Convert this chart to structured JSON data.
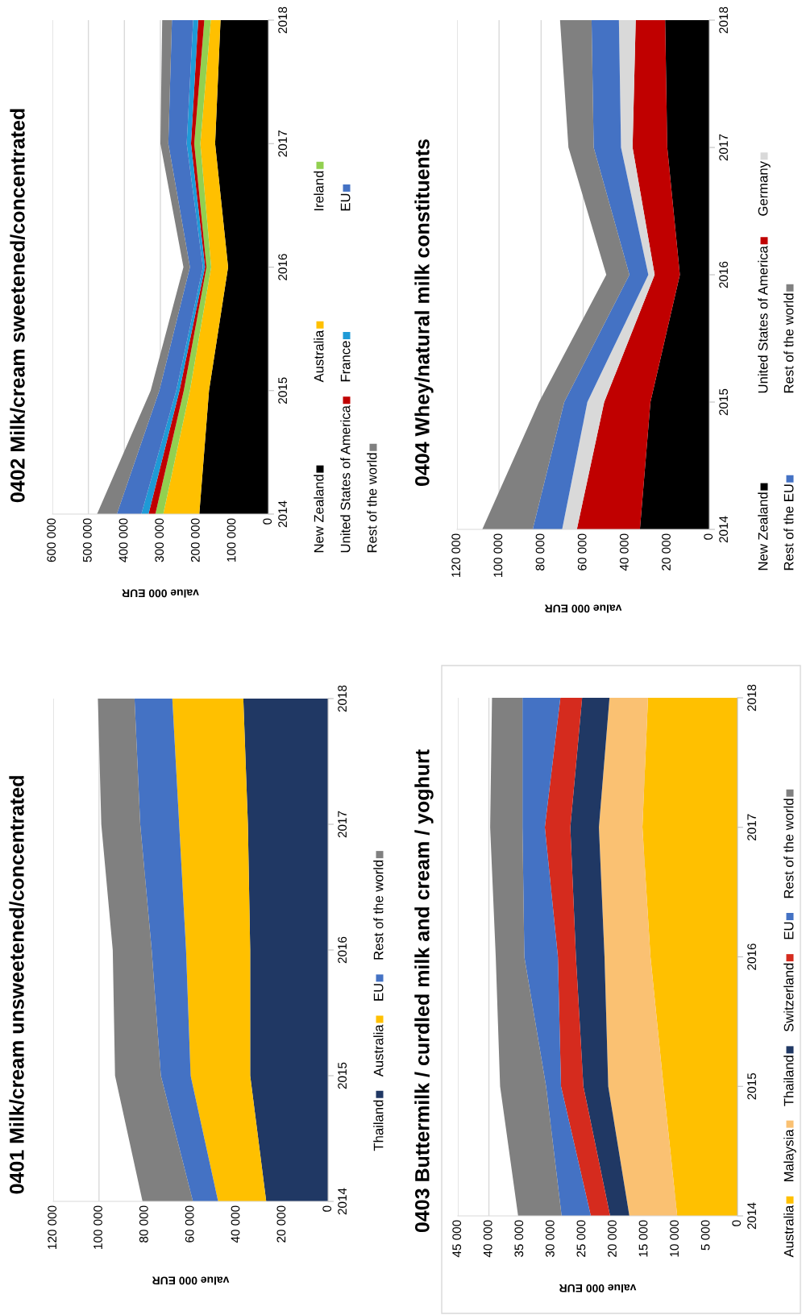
{
  "chart_data": [
    {
      "type": "area",
      "title": "0401 Milk/cream unsweetened/concentrated",
      "xlabel": "value 000 EUR",
      "orientation": "horizontal",
      "stacked": true,
      "categories": [
        "2018",
        "2017",
        "2016",
        "2015",
        "2014"
      ],
      "series": [
        {
          "name": "Thailand",
          "color": "#203864",
          "values": [
            37000,
            35000,
            34000,
            34000,
            27000
          ]
        },
        {
          "name": "Australia",
          "color": "#ffc000",
          "values": [
            31000,
            30000,
            28000,
            26000,
            21000
          ]
        },
        {
          "name": "EU",
          "color": "#4472c4",
          "values": [
            16500,
            17000,
            15000,
            13000,
            11000
          ]
        },
        {
          "name": "Rest of the world",
          "color": "#808080",
          "values": [
            16000,
            17000,
            17000,
            20000,
            22000
          ]
        }
      ],
      "xlim": [
        120000,
        0
      ],
      "xticks": [
        0,
        {
          "value": 20000,
          "label": "20 000"
        },
        {
          "value": 40000,
          "label": "40 000"
        },
        {
          "value": 60000,
          "label": "60 000"
        },
        {
          "value": 80000,
          "label": "80 000"
        },
        {
          "value": 100000,
          "label": "100 000"
        },
        {
          "value": 120000,
          "label": "120 000"
        }
      ],
      "grid": "x",
      "legend": "right"
    },
    {
      "type": "area",
      "title": "0402 Milk/cream sweetened/concentrated",
      "xlabel": "value 000 EUR",
      "orientation": "horizontal",
      "stacked": true,
      "categories": [
        "2018",
        "2017",
        "2016",
        "2015",
        "2014"
      ],
      "series": [
        {
          "name": "New Zealand",
          "color": "#000000",
          "values": [
            133000,
            148000,
            112000,
            165000,
            192000
          ]
        },
        {
          "name": "Australia",
          "color": "#ffc000",
          "values": [
            27000,
            41000,
            47000,
            53000,
            100000
          ]
        },
        {
          "name": "Ireland",
          "color": "#92d050",
          "values": [
            18000,
            17000,
            13000,
            17000,
            22000
          ]
        },
        {
          "name": "United States of America",
          "color": "#c00000",
          "values": [
            17000,
            9000,
            4000,
            12000,
            19000
          ]
        },
        {
          "name": "France",
          "color": "#1f9ad6",
          "values": [
            14000,
            12000,
            6000,
            9000,
            20000
          ]
        },
        {
          "name": "EU",
          "color": "#4472c4",
          "values": [
            59000,
            51000,
            36000,
            47000,
            68000
          ]
        },
        {
          "name": "Rest of the world",
          "color": "#808080",
          "values": [
            27000,
            22000,
            18000,
            24000,
            55000
          ]
        }
      ],
      "xlim": [
        600000,
        0
      ],
      "xticks": [
        0,
        {
          "value": 100000,
          "label": "100 000"
        },
        {
          "value": 200000,
          "label": "200 000"
        },
        {
          "value": 300000,
          "label": "300 000"
        },
        {
          "value": 400000,
          "label": "400 000"
        },
        {
          "value": 500000,
          "label": "500 000"
        },
        {
          "value": 600000,
          "label": "600 000"
        }
      ],
      "grid": "x",
      "legend": "right"
    },
    {
      "type": "area",
      "title": "0403 Buttermilk / curdled milk and cream / yoghurt",
      "xlabel": "value 000 EUR",
      "orientation": "horizontal",
      "stacked": true,
      "categories": [
        "2018",
        "2017",
        "2016",
        "2015",
        "2014"
      ],
      "series": [
        {
          "name": "Australia",
          "color": "#ffc000",
          "values": [
            14400,
            15300,
            14000,
            11900,
            9700
          ]
        },
        {
          "name": "Malaysia",
          "color": "#fac172",
          "values": [
            6200,
            7000,
            7400,
            8900,
            7700
          ]
        },
        {
          "name": "Thailand",
          "color": "#203864",
          "values": [
            4400,
            4600,
            4600,
            4000,
            3100
          ]
        },
        {
          "name": "Switzerland",
          "color": "#d52b1e",
          "values": [
            3500,
            4100,
            2900,
            3600,
            3100
          ]
        },
        {
          "name": "EU",
          "color": "#4472c4",
          "values": [
            6100,
            3600,
            5400,
            2400,
            4700
          ]
        },
        {
          "name": "Rest of the world",
          "color": "#808080",
          "values": [
            4900,
            5200,
            4600,
            7400,
            7000
          ]
        }
      ],
      "xlim": [
        45000,
        0
      ],
      "xticks": [
        0,
        {
          "value": 5000,
          "label": "5 000"
        },
        {
          "value": 10000,
          "label": "10 000"
        },
        {
          "value": 15000,
          "label": "15 000"
        },
        {
          "value": 20000,
          "label": "20 000"
        },
        {
          "value": 25000,
          "label": "25 000"
        },
        {
          "value": 30000,
          "label": "30 000"
        },
        {
          "value": 35000,
          "label": "35 000"
        },
        {
          "value": 40000,
          "label": "40 000"
        },
        {
          "value": 45000,
          "label": "45 000"
        }
      ],
      "grid": "x",
      "legend": "right"
    },
    {
      "type": "area",
      "title": "0404 Whey/natural milk constituents",
      "xlabel": "value 000 EUR",
      "orientation": "horizontal",
      "stacked": true,
      "categories": [
        "2018",
        "2017",
        "2016",
        "2015",
        "2014"
      ],
      "series": [
        {
          "name": "New Zealand",
          "color": "#000000",
          "values": [
            21000,
            20000,
            14000,
            28000,
            33000
          ]
        },
        {
          "name": "United States of America",
          "color": "#c00000",
          "values": [
            14000,
            16500,
            12000,
            22000,
            30000
          ]
        },
        {
          "name": "Germany",
          "color": "#d9d9d9",
          "values": [
            8000,
            5500,
            3000,
            8000,
            7000
          ]
        },
        {
          "name": "Rest of the EU",
          "color": "#4472c4",
          "values": [
            13000,
            13000,
            9000,
            11000,
            14000
          ]
        },
        {
          "name": "Rest of the world",
          "color": "#808080",
          "values": [
            15000,
            12000,
            11000,
            12000,
            24000
          ]
        }
      ],
      "xlim": [
        120000,
        0
      ],
      "xticks": [
        0,
        {
          "value": 20000,
          "label": "20 000"
        },
        {
          "value": 40000,
          "label": "40 000"
        },
        {
          "value": 60000,
          "label": "60 000"
        },
        {
          "value": 80000,
          "label": "80 000"
        },
        {
          "value": 100000,
          "label": "100 000"
        },
        {
          "value": 120000,
          "label": "120 000"
        }
      ],
      "grid": "x",
      "legend": "right"
    }
  ]
}
